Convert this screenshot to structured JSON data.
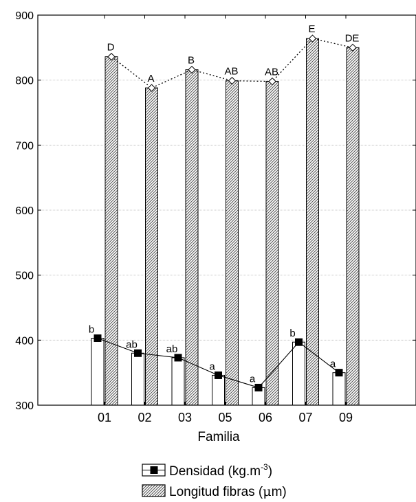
{
  "chart_data": {
    "type": "bar",
    "title": "",
    "xlabel": "Familia",
    "ylabel": "",
    "ylim": [
      300,
      900
    ],
    "yticks": [
      "300",
      "400",
      "500",
      "600",
      "700",
      "800",
      "900"
    ],
    "grid": true,
    "categories": [
      "01",
      "02",
      "03",
      "05",
      "06",
      "07",
      "09"
    ],
    "series": [
      {
        "name": "Densidad (kg.m",
        "unit_sup": "-3",
        "unit_close": ")",
        "style": "white bars with black square markers joined by solid line",
        "values": [
          403,
          380,
          373,
          346,
          327,
          397,
          350
        ],
        "labels": [
          "b",
          "ab",
          "ab",
          "a",
          "a",
          "b",
          "a"
        ]
      },
      {
        "name": "Longitud fibras (",
        "unit_greek": "μ",
        "unit_close": "m)",
        "style": "hatched bars with white diamond markers joined by dotted line",
        "values": [
          836,
          788,
          816,
          799,
          798,
          864,
          850
        ],
        "labels": [
          "D",
          "A",
          "B",
          "AB",
          "AB",
          "E",
          "DE"
        ]
      }
    ],
    "legend_position": "bottom-center"
  },
  "colors": {
    "axis": "#000000",
    "grid": "#c8c8c8",
    "bar_fill": "#ffffff",
    "hatch": "#555555"
  }
}
